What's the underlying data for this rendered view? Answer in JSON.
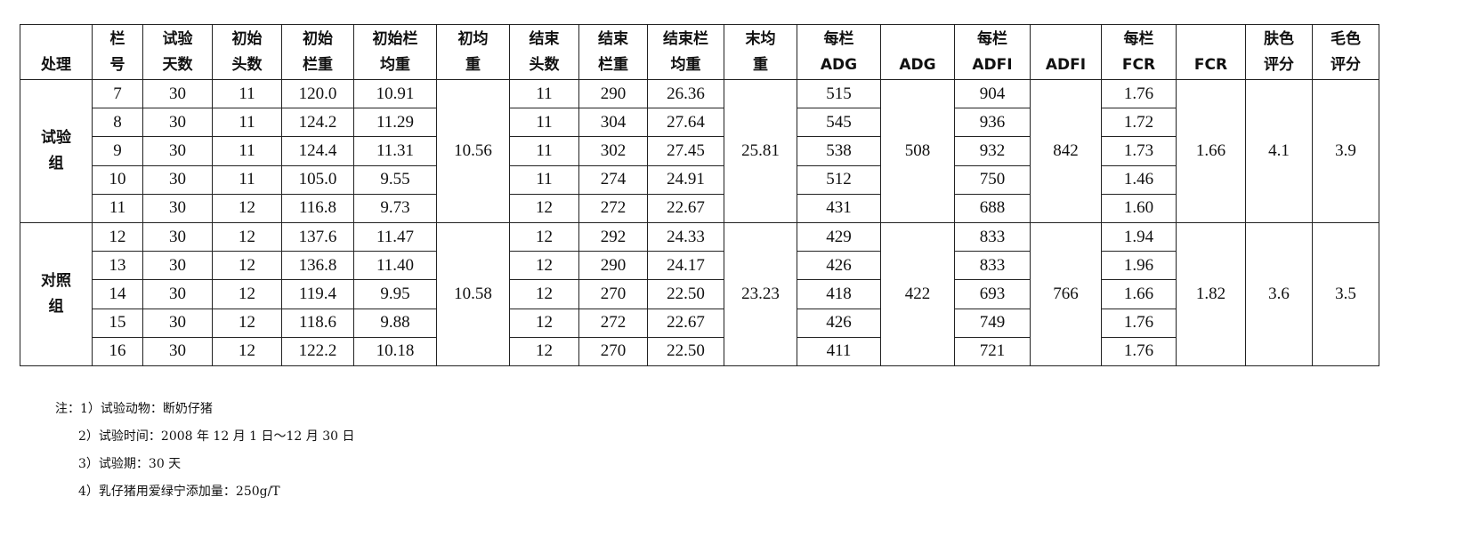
{
  "table": {
    "headers": [
      [
        "",
        "处理"
      ],
      [
        "栏",
        "号"
      ],
      [
        "试验",
        "天数"
      ],
      [
        "初始",
        "头数"
      ],
      [
        "初始",
        "栏重"
      ],
      [
        "初始栏",
        "均重"
      ],
      [
        "初均",
        "重"
      ],
      [
        "结束",
        "头数"
      ],
      [
        "结束",
        "栏重"
      ],
      [
        "结束栏",
        "均重"
      ],
      [
        "末均",
        "重"
      ],
      [
        "每栏",
        "ADG"
      ],
      [
        "",
        "ADG"
      ],
      [
        "每栏",
        "ADFI"
      ],
      [
        "",
        "ADFI"
      ],
      [
        "每栏",
        "FCR"
      ],
      [
        "",
        "FCR"
      ],
      [
        "肤色",
        "评分"
      ],
      [
        "毛色",
        "评分"
      ]
    ],
    "groups": [
      {
        "name": "试验组",
        "init_avg": "10.56",
        "end_avg": "25.81",
        "adg": "508",
        "adfi": "842",
        "fcr": "1.66",
        "skin": "4.1",
        "hair": "3.9",
        "rows": [
          [
            "7",
            "30",
            "11",
            "120.0",
            "10.91",
            "11",
            "290",
            "26.36",
            "515",
            "904",
            "1.76"
          ],
          [
            "8",
            "30",
            "11",
            "124.2",
            "11.29",
            "11",
            "304",
            "27.64",
            "545",
            "936",
            "1.72"
          ],
          [
            "9",
            "30",
            "11",
            "124.4",
            "11.31",
            "11",
            "302",
            "27.45",
            "538",
            "932",
            "1.73"
          ],
          [
            "10",
            "30",
            "11",
            "105.0",
            "9.55",
            "11",
            "274",
            "24.91",
            "512",
            "750",
            "1.46"
          ],
          [
            "11",
            "30",
            "12",
            "116.8",
            "9.73",
            "12",
            "272",
            "22.67",
            "431",
            "688",
            "1.60"
          ]
        ]
      },
      {
        "name": "对照组",
        "init_avg": "10.58",
        "end_avg": "23.23",
        "adg": "422",
        "adfi": "766",
        "fcr": "1.82",
        "skin": "3.6",
        "hair": "3.5",
        "rows": [
          [
            "12",
            "30",
            "12",
            "137.6",
            "11.47",
            "12",
            "292",
            "24.33",
            "429",
            "833",
            "1.94"
          ],
          [
            "13",
            "30",
            "12",
            "136.8",
            "11.40",
            "12",
            "290",
            "24.17",
            "426",
            "833",
            "1.96"
          ],
          [
            "14",
            "30",
            "12",
            "119.4",
            "9.95",
            "12",
            "270",
            "22.50",
            "418",
            "693",
            "1.66"
          ],
          [
            "15",
            "30",
            "12",
            "118.6",
            "9.88",
            "12",
            "272",
            "22.67",
            "426",
            "749",
            "1.76"
          ],
          [
            "16",
            "30",
            "12",
            "122.2",
            "10.18",
            "12",
            "270",
            "22.50",
            "411",
            "721",
            "1.76"
          ]
        ]
      }
    ]
  },
  "notes": [
    "注：1）试验动物：断奶仔猪",
    "2）试验时间：2008 年 12 月 1 日～12 月 30 日",
    "3）试验期：30 天",
    "4）乳仔猪用爱绿宁添加量：250g/T"
  ]
}
